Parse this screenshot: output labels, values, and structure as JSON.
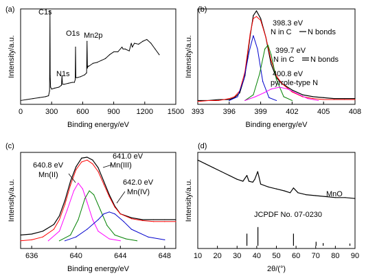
{
  "chart_data": [
    {
      "panel": "(a)",
      "type": "line",
      "xlabel": "Binding energy/eV",
      "ylabel": "Intensity/a.u.",
      "xlim": [
        0,
        1500
      ],
      "ylim": [
        0,
        100
      ],
      "xticks": [
        0,
        300,
        600,
        900,
        1200,
        1500
      ],
      "series": [
        {
          "color": "#000000",
          "x": [
            0,
            60,
            120,
            180,
            240,
            270,
            280,
            284,
            286,
            290,
            300,
            330,
            370,
            395,
            400,
            405,
            420,
            460,
            500,
            520,
            528,
            531,
            534,
            545,
            580,
            620,
            638,
            642,
            646,
            652,
            660,
            700,
            740,
            780,
            820,
            860,
            900,
            940,
            980,
            990,
            1010,
            1050,
            1070,
            1080,
            1100,
            1140,
            1180,
            1220,
            1260,
            1300,
            1340
          ],
          "y": [
            4,
            5,
            6,
            7,
            8,
            9,
            14,
            98,
            30,
            18,
            16,
            17,
            18,
            20,
            30,
            21,
            21,
            22,
            23,
            23,
            26,
            60,
            28,
            28,
            29,
            31,
            33,
            66,
            38,
            40,
            40,
            43,
            44,
            46,
            48,
            52,
            55,
            55,
            60,
            58,
            58,
            56,
            64,
            60,
            64,
            63,
            66,
            68,
            64,
            58,
            52
          ]
        }
      ],
      "annotations": [
        {
          "text": "C1s",
          "x": 284
        },
        {
          "text": "N1s",
          "x": 400
        },
        {
          "text": "O1s",
          "x": 531
        },
        {
          "text": "Mn2p",
          "x": 642
        }
      ]
    },
    {
      "panel": "(b)",
      "type": "line",
      "xlabel": "Binding energy/eV",
      "ylabel": "Intensity/a.u.",
      "xlim": [
        393,
        408
      ],
      "ylim": [
        0,
        100
      ],
      "xticks": [
        393,
        396,
        399,
        402,
        405,
        408
      ],
      "series": [
        {
          "color": "#000000",
          "role": "measured",
          "x": [
            393,
            394,
            395,
            396,
            396.5,
            397,
            397.5,
            398,
            398.3,
            398.6,
            399,
            399.5,
            400,
            400.5,
            401,
            402,
            403,
            404,
            405,
            406,
            407,
            408
          ],
          "y": [
            4,
            4,
            5,
            5,
            7,
            12,
            30,
            72,
            93,
            98,
            90,
            70,
            42,
            28,
            22,
            15,
            10,
            8,
            7,
            6,
            6,
            6
          ]
        },
        {
          "color": "#ff0000",
          "role": "fit envelope",
          "x": [
            393,
            394,
            395,
            396,
            396.5,
            397,
            397.5,
            398,
            398.3,
            398.6,
            399,
            399.5,
            400,
            400.5,
            401,
            402,
            403,
            404,
            405,
            406,
            407,
            408
          ],
          "y": [
            3,
            4,
            4,
            6,
            8,
            14,
            34,
            74,
            90,
            92,
            88,
            70,
            46,
            30,
            22,
            13,
            8,
            6,
            5,
            5,
            5,
            5
          ]
        },
        {
          "color": "#0000cd",
          "label": "398.3 eV N in C–N bonds",
          "x": [
            396,
            396.8,
            397.4,
            397.9,
            398.3,
            398.7,
            399.2,
            399.8,
            400.5
          ],
          "y": [
            4,
            8,
            26,
            55,
            72,
            58,
            24,
            7,
            4
          ]
        },
        {
          "color": "#008000",
          "label": "399.7 eV N in C=N bonds",
          "x": [
            397.5,
            398.3,
            398.9,
            399.4,
            399.7,
            400,
            400.5,
            401.2,
            402
          ],
          "y": [
            4,
            10,
            32,
            58,
            62,
            52,
            26,
            8,
            4
          ]
        },
        {
          "color": "#ff00ff",
          "label": "400.8 eV pyrrole-type N",
          "x": [
            397.5,
            398.5,
            399.3,
            400,
            400.8,
            401.6,
            402.5,
            403.5,
            404.5
          ],
          "y": [
            4,
            8,
            12,
            16,
            18,
            16,
            11,
            6,
            4
          ]
        }
      ],
      "annotations": [
        {
          "line1": "398.3 eV",
          "line2": "N in C",
          "bond": "N bonds",
          "bond_type": "single"
        },
        {
          "line1": "399.7 eV",
          "line2": "N in C",
          "bond": "N bonds",
          "bond_type": "double"
        },
        {
          "line1": "400.8 eV",
          "line2": "pyrrole-type N"
        }
      ]
    },
    {
      "panel": "(c)",
      "type": "line",
      "xlabel": "Binding energy/eV",
      "ylabel": "Intensity/a.u.",
      "xlim": [
        635,
        649
      ],
      "ylim": [
        0,
        100
      ],
      "xticks": [
        636,
        640,
        644,
        648
      ],
      "series": [
        {
          "color": "#000000",
          "role": "measured",
          "x": [
            635,
            636,
            637,
            638,
            638.5,
            639,
            639.5,
            640,
            640.5,
            641,
            641.5,
            642,
            642.5,
            643,
            643.5,
            644,
            645,
            646,
            647,
            648,
            649
          ],
          "y": [
            14,
            15,
            18,
            25,
            34,
            50,
            70,
            85,
            94,
            95,
            92,
            84,
            70,
            56,
            44,
            36,
            32,
            30,
            30,
            30,
            30
          ]
        },
        {
          "color": "#ff0000",
          "role": "fit envelope",
          "x": [
            635,
            636,
            637,
            638,
            638.5,
            639,
            639.5,
            640,
            640.5,
            641,
            641.5,
            642,
            642.5,
            643,
            643.5,
            644,
            645,
            646,
            647,
            648,
            649
          ],
          "y": [
            8,
            9,
            12,
            20,
            30,
            46,
            66,
            82,
            90,
            92,
            88,
            80,
            67,
            54,
            43,
            36,
            31,
            29,
            28,
            28,
            28
          ]
        },
        {
          "color": "#ff00ff",
          "label": "640.8 eV Mn(II)",
          "x": [
            637.5,
            638.5,
            639.2,
            639.8,
            640.2,
            640.6,
            641,
            641.5,
            642,
            643,
            644
          ],
          "y": [
            8,
            18,
            40,
            60,
            68,
            62,
            48,
            30,
            18,
            10,
            8
          ]
        },
        {
          "color": "#008000",
          "label": "641.0 eV Mn(III)",
          "x": [
            638.5,
            639.5,
            640.2,
            640.8,
            641.2,
            641.6,
            642.2,
            642.8,
            643.5,
            644.5,
            645.5
          ],
          "y": [
            8,
            14,
            30,
            52,
            60,
            56,
            40,
            24,
            14,
            10,
            8
          ]
        },
        {
          "color": "#0000cd",
          "label": "642.0 eV Mn(IV)",
          "x": [
            639,
            640,
            641,
            642,
            642.5,
            643,
            643.5,
            644.3,
            645,
            646.5,
            648
          ],
          "y": [
            8,
            12,
            20,
            30,
            36,
            38,
            36,
            28,
            20,
            12,
            9
          ]
        }
      ],
      "annotations": [
        {
          "line1": "641.0 eV",
          "line2": "Mn(III)"
        },
        {
          "line1": "640.8 eV",
          "line2": "Mn(II)"
        },
        {
          "line1": "642.0 eV",
          "line2": "Mn(IV)"
        }
      ]
    },
    {
      "panel": "(d)",
      "type": "line",
      "xlabel": "2θ/(°)",
      "ylabel": "Intensity/a.u.",
      "xlim": [
        10,
        90
      ],
      "ylim": [
        0,
        100
      ],
      "xticks": [
        10,
        20,
        30,
        40,
        50,
        60,
        70,
        80,
        90
      ],
      "series": [
        {
          "color": "#000000",
          "role": "XRD pattern",
          "x": [
            10,
            14,
            18,
            22,
            26,
            30,
            33,
            35,
            36,
            38,
            39,
            40.5,
            42,
            46,
            50,
            54,
            57,
            58.7,
            61,
            65,
            70,
            75,
            80,
            85,
            90
          ],
          "y": [
            92,
            88,
            84,
            80,
            76,
            72,
            70,
            76,
            70,
            69,
            72,
            80,
            67,
            64,
            62,
            60,
            58,
            63,
            58,
            56,
            55,
            54,
            53,
            53,
            52
          ]
        }
      ],
      "reference": {
        "label": "JCPDF No. 07-0230",
        "phase": "MnO",
        "peaks": [
          {
            "x": 35.0,
            "h": 55
          },
          {
            "x": 40.6,
            "h": 85
          },
          {
            "x": 58.7,
            "h": 55
          },
          {
            "x": 70.2,
            "h": 18
          },
          {
            "x": 73.8,
            "h": 12
          },
          {
            "x": 87.4,
            "h": 10
          }
        ]
      }
    }
  ]
}
